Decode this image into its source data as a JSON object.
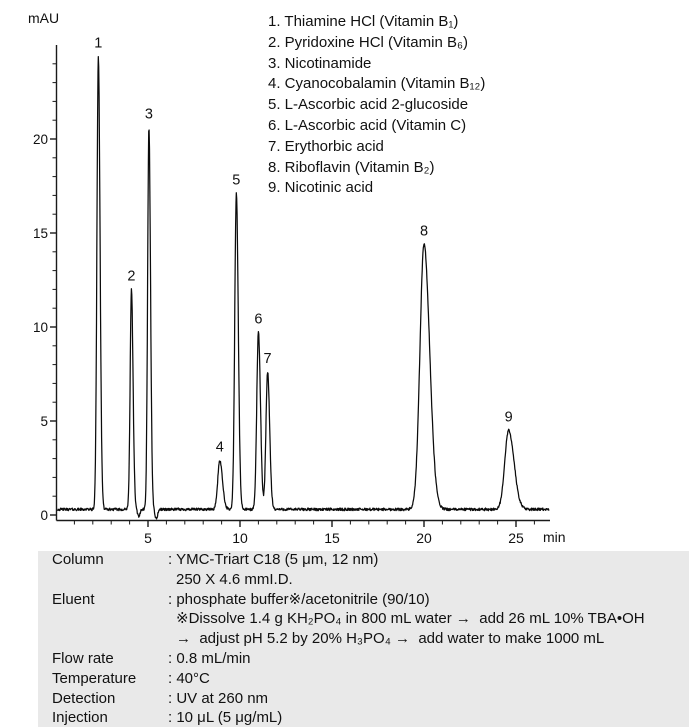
{
  "page": {
    "background": "#ffffff"
  },
  "chart_data": {
    "type": "line",
    "title": "",
    "xlabel": "min",
    "ylabel": "mAU",
    "x_range": [
      0.08,
      26.8
    ],
    "y_range": [
      0,
      25.1
    ],
    "x_ticks_major": [
      5,
      10,
      15,
      20,
      25
    ],
    "x_tick_minor_step": 1,
    "y_ticks_major": [
      0,
      5,
      10,
      15,
      20
    ],
    "y_tick_minor_step": 1,
    "grid": false,
    "legend_position": "top-right",
    "baseline_mAU": 0.3,
    "noise_mAU": 0.07,
    "peaks": [
      {
        "label": "1",
        "compound": "Thiamine HCl (Vitamin B₁)",
        "rt_min": 2.3,
        "apex_mAU": 24.4,
        "sigma_min": 0.075,
        "tailing": 1.25
      },
      {
        "label": "2",
        "compound": "Pyridoxine HCl (Vitamin B₆)",
        "rt_min": 4.1,
        "apex_mAU": 12.0,
        "sigma_min": 0.07,
        "tailing": 1.25
      },
      {
        "label": "3",
        "compound": "Nicotinamide",
        "rt_min": 5.05,
        "apex_mAU": 20.6,
        "sigma_min": 0.07,
        "tailing": 1.25
      },
      {
        "label": "4",
        "compound": "Cyanocobalamin (Vitamin B₁₂)",
        "rt_min": 8.9,
        "apex_mAU": 2.9,
        "sigma_min": 0.11,
        "tailing": 1.35
      },
      {
        "label": "5",
        "compound": "L-Ascorbic acid 2-glucoside",
        "rt_min": 9.8,
        "apex_mAU": 17.1,
        "sigma_min": 0.085,
        "tailing": 1.25
      },
      {
        "label": "6",
        "compound": "L-Ascorbic acid (Vitamin C)",
        "rt_min": 11.0,
        "apex_mAU": 9.7,
        "sigma_min": 0.09,
        "tailing": 1.25
      },
      {
        "label": "7",
        "compound": "Erythorbic acid",
        "rt_min": 11.5,
        "apex_mAU": 7.6,
        "sigma_min": 0.09,
        "tailing": 1.25
      },
      {
        "label": "8",
        "compound": "Riboflavin (Vitamin B₂)",
        "rt_min": 20.0,
        "apex_mAU": 14.4,
        "sigma_min": 0.22,
        "tailing": 1.4
      },
      {
        "label": "9",
        "compound": "Nicotinic acid",
        "rt_min": 24.6,
        "apex_mAU": 4.5,
        "sigma_min": 0.21,
        "tailing": 1.4
      }
    ],
    "baseline_dips": [
      {
        "t_min": 4.5,
        "depth_mAU": -0.35,
        "sigma_min": 0.07
      },
      {
        "t_min": 5.45,
        "depth_mAU": -0.5,
        "sigma_min": 0.07
      }
    ]
  },
  "legend": {
    "items": [
      "1. Thiamine HCl (Vitamin B₁)",
      "2. Pyridoxine HCl (Vitamin B₆)",
      "3. Nicotinamide",
      "4. Cyanocobalamin (Vitamin B₁₂)",
      "5. L-Ascorbic acid 2-glucoside",
      "6. L-Ascorbic acid (Vitamin C)",
      "7. Erythorbic acid",
      "8. Riboflavin (Vitamin B₂)",
      "9. Nicotinic acid"
    ]
  },
  "conditions": {
    "rows": [
      {
        "label": "Column",
        "lines": [
          {
            "text": ": YMC-Triart C18 (5 μm, 12 nm)",
            "indent": 0
          },
          {
            "text": "250 X 4.6 mmI.D.",
            "indent": 1
          }
        ]
      },
      {
        "label": "Eluent",
        "lines": [
          {
            "text": ": phosphate buffer※/acetonitrile (90/10)",
            "indent": 0
          },
          {
            "text": "※Dissolve 1.4 g KH₂PO₄ in 800 mL water →  add 26 mL 10% TBA•OH",
            "indent": 1
          },
          {
            "text": "→  adjust pH 5.2 by 20% H₃PO₄ →  add water to make 1000 mL",
            "indent": 1
          }
        ]
      },
      {
        "label": "Flow rate",
        "lines": [
          {
            "text": ": 0.8 mL/min",
            "indent": 0
          }
        ]
      },
      {
        "label": "Temperature",
        "lines": [
          {
            "text": ": 40°C",
            "indent": 0
          }
        ]
      },
      {
        "label": "Detection",
        "lines": [
          {
            "text": ": UV at 260 nm",
            "indent": 0
          }
        ]
      },
      {
        "label": "Injection",
        "lines": [
          {
            "text": ": 10 μL (5 μg/mL)",
            "indent": 0
          }
        ]
      }
    ]
  },
  "colors": {
    "panel_bg": "#e9e9e9",
    "text": "#111111",
    "axis": "#1a1a1a",
    "trace": "#0b0b0b"
  }
}
